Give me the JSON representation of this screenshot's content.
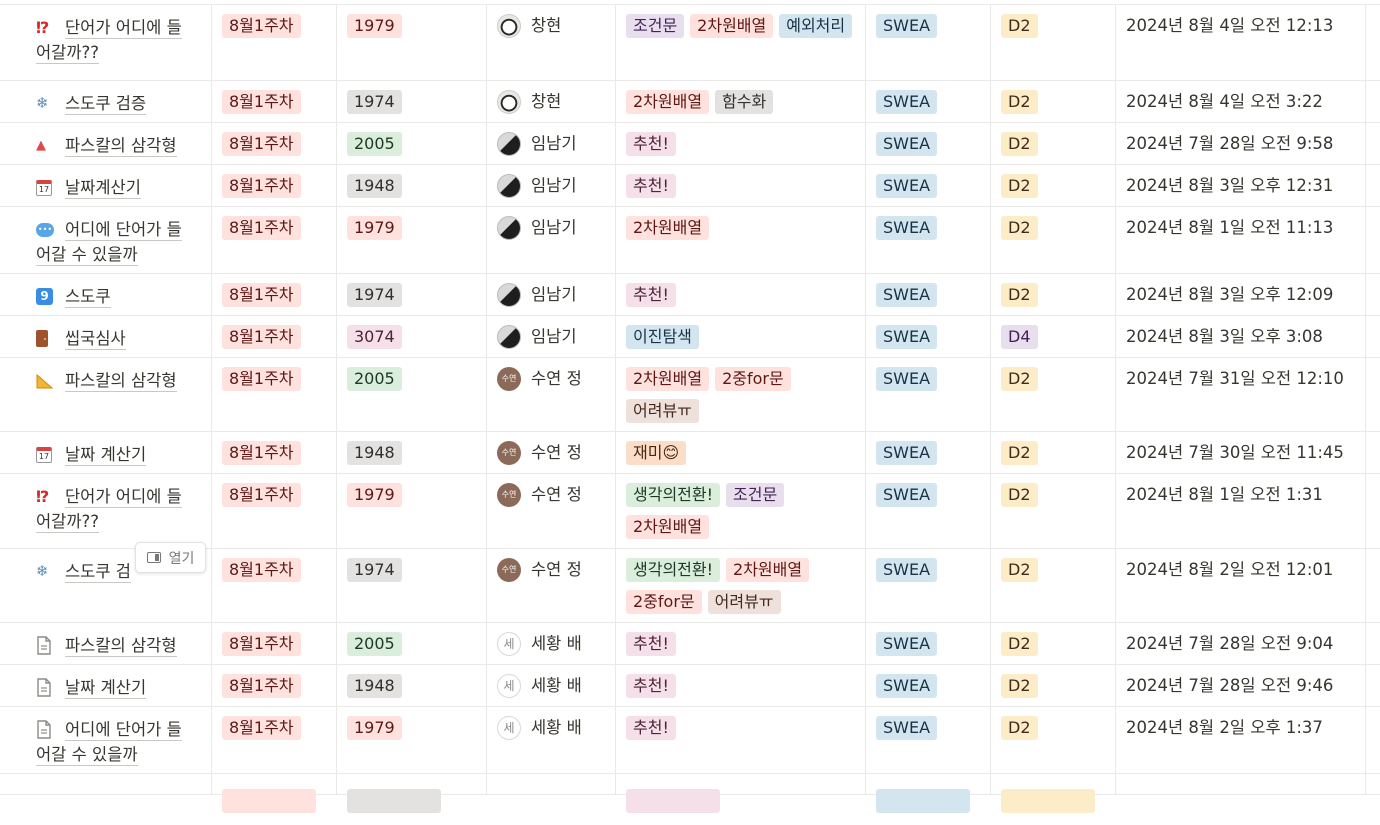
{
  "rows": [
    {
      "icon": "⁉️",
      "icon_name": "interrobang-icon",
      "title_lines": [
        "단어가 어디에 들",
        "어갈까??"
      ],
      "week": "8월1주차",
      "num": "1979",
      "num_color": "red",
      "person": "창현",
      "avatar": "panda",
      "tags": [
        {
          "t": "조건문",
          "c": "purple"
        },
        {
          "t": "2차원배열",
          "c": "red"
        },
        {
          "t": "예외처리",
          "c": "blue"
        }
      ],
      "site": "SWEA",
      "level": "D2",
      "level_color": "yellow",
      "date": "2024년 8월 4일 오전 12:13"
    },
    {
      "icon": "❄",
      "icon_name": "snowflake-icon",
      "title_lines": [
        "스도쿠 검증"
      ],
      "week": "8월1주차",
      "num": "1974",
      "num_color": "gray",
      "person": "창현",
      "avatar": "panda",
      "tags": [
        {
          "t": "2차원배열",
          "c": "red"
        },
        {
          "t": "함수화",
          "c": "gray"
        }
      ],
      "site": "SWEA",
      "level": "D2",
      "level_color": "yellow",
      "date": "2024년 8월 4일 오전 3:22"
    },
    {
      "icon": "▲",
      "icon_name": "red-triangle-icon",
      "title_lines": [
        "파스칼의 삼각형"
      ],
      "week": "8월1주차",
      "num": "2005",
      "num_color": "green",
      "person": "임남기",
      "avatar": "moon",
      "tags": [
        {
          "t": "추천!",
          "c": "pink"
        }
      ],
      "site": "SWEA",
      "level": "D2",
      "level_color": "yellow",
      "date": "2024년 7월 28일 오전 9:58"
    },
    {
      "icon": "📆",
      "icon_name": "calendar-icon",
      "title_lines": [
        "날짜계산기"
      ],
      "week": "8월1주차",
      "num": "1948",
      "num_color": "gray",
      "person": "임남기",
      "avatar": "moon",
      "tags": [
        {
          "t": "추천!",
          "c": "pink"
        }
      ],
      "site": "SWEA",
      "level": "D2",
      "level_color": "yellow",
      "date": "2024년 8월 3일 오후 12:31"
    },
    {
      "icon": "💬",
      "icon_name": "speech-bubble-icon",
      "title_lines": [
        "어디에 단어가 들",
        "어갈 수 있을까"
      ],
      "week": "8월1주차",
      "num": "1979",
      "num_color": "red",
      "person": "임남기",
      "avatar": "moon",
      "tags": [
        {
          "t": "2차원배열",
          "c": "red"
        }
      ],
      "site": "SWEA",
      "level": "D2",
      "level_color": "yellow",
      "date": "2024년 8월 1일 오전 11:13"
    },
    {
      "icon": "9",
      "icon_name": "keycap-nine-icon",
      "title_lines": [
        "스도쿠"
      ],
      "week": "8월1주차",
      "num": "1974",
      "num_color": "gray",
      "person": "임남기",
      "avatar": "moon",
      "tags": [
        {
          "t": "추천!",
          "c": "pink"
        }
      ],
      "site": "SWEA",
      "level": "D2",
      "level_color": "yellow",
      "date": "2024년 8월 3일 오후 12:09"
    },
    {
      "icon": "▮",
      "icon_name": "door-icon",
      "title_lines": [
        "씹국심사"
      ],
      "week": "8월1주차",
      "num": "3074",
      "num_color": "pink",
      "person": "임남기",
      "avatar": "moon",
      "tags": [
        {
          "t": "이진탐색",
          "c": "blue"
        }
      ],
      "site": "SWEA",
      "level": "D4",
      "level_color": "purple",
      "date": "2024년 8월 3일 오후 3:08"
    },
    {
      "icon": "📐",
      "icon_name": "triangular-ruler-icon",
      "title_lines": [
        "파스칼의 삼각형"
      ],
      "week": "8월1주차",
      "num": "2005",
      "num_color": "green",
      "person": "수연 정",
      "avatar": "brown",
      "avatar_text": "수연",
      "tags": [
        {
          "t": "2차원배열",
          "c": "red"
        },
        {
          "t": "2중for문",
          "c": "red"
        },
        {
          "t": "어려뷰ㅠ",
          "c": "brown"
        }
      ],
      "site": "SWEA",
      "level": "D2",
      "level_color": "yellow",
      "date": "2024년 7월 31일 오전 12:10"
    },
    {
      "icon": "📅",
      "icon_name": "calendar-icon",
      "title_lines": [
        "날짜 계산기"
      ],
      "week": "8월1주차",
      "num": "1948",
      "num_color": "gray",
      "person": "수연 정",
      "avatar": "brown",
      "avatar_text": "수연",
      "tags": [
        {
          "t": "재미😊",
          "c": "orange"
        }
      ],
      "site": "SWEA",
      "level": "D2",
      "level_color": "yellow",
      "date": "2024년 7월 30일 오전 11:45"
    },
    {
      "icon": "⁉️",
      "icon_name": "interrobang-icon",
      "title_lines": [
        "단어가 어디에 들",
        "어갈까??"
      ],
      "week": "8월1주차",
      "num": "1979",
      "num_color": "red",
      "person": "수연 정",
      "avatar": "brown",
      "avatar_text": "수연",
      "tags": [
        {
          "t": "생각의전환!",
          "c": "green"
        },
        {
          "t": "조건문",
          "c": "purple"
        },
        {
          "t": "2차원배열",
          "c": "red"
        }
      ],
      "site": "SWEA",
      "level": "D2",
      "level_color": "yellow",
      "date": "2024년 8월 1일 오전 1:31"
    },
    {
      "icon": "❄",
      "icon_name": "snowflake-icon",
      "title_lines": [
        "스도쿠 검"
      ],
      "week": "8월1주차",
      "num": "1974",
      "num_color": "gray",
      "person": "수연 정",
      "avatar": "brown",
      "avatar_text": "수연",
      "tags": [
        {
          "t": "생각의전환!",
          "c": "green"
        },
        {
          "t": "2차원배열",
          "c": "red"
        },
        {
          "t": "2중for문",
          "c": "red"
        },
        {
          "t": "어려뷰ㅠ",
          "c": "brown"
        }
      ],
      "site": "SWEA",
      "level": "D2",
      "level_color": "yellow",
      "date": "2024년 8월 2일 오전 12:01"
    },
    {
      "icon": "🗋",
      "icon_name": "page-icon",
      "title_lines": [
        "파스칼의 삼각형"
      ],
      "week": "8월1주차",
      "num": "2005",
      "num_color": "green",
      "person": "세황 배",
      "avatar": "plain",
      "avatar_text": "세",
      "tags": [
        {
          "t": "추천!",
          "c": "pink"
        }
      ],
      "site": "SWEA",
      "level": "D2",
      "level_color": "yellow",
      "date": "2024년 7월 28일 오전 9:04"
    },
    {
      "icon": "🗋",
      "icon_name": "page-icon",
      "title_lines": [
        "날짜 계산기"
      ],
      "week": "8월1주차",
      "num": "1948",
      "num_color": "gray",
      "person": "세황 배",
      "avatar": "plain",
      "avatar_text": "세",
      "tags": [
        {
          "t": "추천!",
          "c": "pink"
        }
      ],
      "site": "SWEA",
      "level": "D2",
      "level_color": "yellow",
      "date": "2024년 7월 28일 오전 9:46"
    },
    {
      "icon": "🗋",
      "icon_name": "page-icon",
      "title_lines": [
        "어디에 단어가 들",
        "어갈 수 있을까"
      ],
      "week": "8월1주차",
      "num": "1979",
      "num_color": "red",
      "person": "세황 배",
      "avatar": "plain",
      "avatar_text": "세",
      "tags": [
        {
          "t": "추천!",
          "c": "pink"
        }
      ],
      "site": "SWEA",
      "level": "D2",
      "level_color": "yellow",
      "date": "2024년 8월 2일 오후 1:37"
    }
  ],
  "open_button": {
    "label": "열기",
    "icon": "side-peek-icon"
  }
}
